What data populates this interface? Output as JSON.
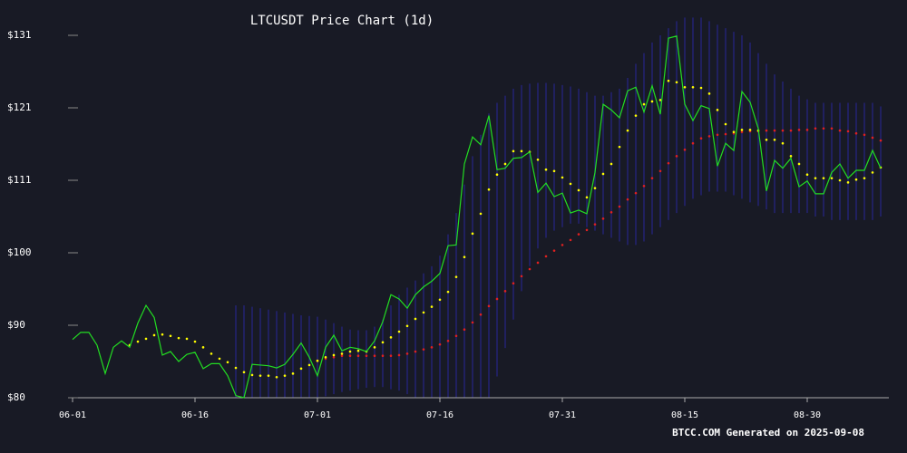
{
  "chart_data": {
    "type": "line",
    "title": "LTCUSDT Price Chart (1d)",
    "footer": "BTCC.COM Generated on 2025-09-08",
    "x": [
      "06-01",
      "06-02",
      "06-03",
      "06-04",
      "06-05",
      "06-06",
      "06-07",
      "06-08",
      "06-09",
      "06-10",
      "06-11",
      "06-12",
      "06-13",
      "06-14",
      "06-15",
      "06-16",
      "06-17",
      "06-18",
      "06-19",
      "06-20",
      "06-21",
      "06-22",
      "06-23",
      "06-24",
      "06-25",
      "06-26",
      "06-27",
      "06-28",
      "06-29",
      "06-30",
      "07-01",
      "07-02",
      "07-03",
      "07-04",
      "07-05",
      "07-06",
      "07-07",
      "07-08",
      "07-09",
      "07-10",
      "07-11",
      "07-12",
      "07-13",
      "07-14",
      "07-15",
      "07-16",
      "07-17",
      "07-18",
      "07-19",
      "07-20",
      "07-21",
      "07-22",
      "07-23",
      "07-24",
      "07-25",
      "07-26",
      "07-27",
      "07-28",
      "07-29",
      "07-30",
      "07-31",
      "08-01",
      "08-02",
      "08-03",
      "08-04",
      "08-05",
      "08-06",
      "08-07",
      "08-08",
      "08-09",
      "08-10",
      "08-11",
      "08-12",
      "08-13",
      "08-14",
      "08-15",
      "08-16",
      "08-17",
      "08-18",
      "08-19",
      "08-20",
      "08-21",
      "08-22",
      "08-23",
      "08-24",
      "08-25",
      "08-26",
      "08-27",
      "08-28",
      "08-29",
      "08-30",
      "08-31",
      "09-01",
      "09-02",
      "09-03",
      "09-04",
      "09-05",
      "09-06",
      "09-07",
      "09-08"
    ],
    "xticks": [
      "06-01",
      "06-16",
      "07-01",
      "07-16",
      "07-31",
      "08-15",
      "08-30"
    ],
    "ylim": [
      80,
      131
    ],
    "yticks": [
      {
        "value": 80,
        "label": "$80"
      },
      {
        "value": 90.2,
        "label": "$90"
      },
      {
        "value": 100.4,
        "label": "$100"
      },
      {
        "value": 110.6,
        "label": "$111"
      },
      {
        "value": 120.8,
        "label": "$121"
      },
      {
        "value": 131,
        "label": "$131"
      }
    ],
    "bands": {
      "color": "#22226e",
      "upper": [
        null,
        null,
        null,
        null,
        null,
        null,
        null,
        null,
        null,
        null,
        null,
        null,
        null,
        null,
        null,
        null,
        null,
        null,
        null,
        null,
        93.0,
        93.0,
        92.8,
        92.6,
        92.4,
        92.2,
        92.0,
        91.8,
        91.6,
        91.5,
        91.4,
        91.0,
        90.5,
        90.0,
        89.6,
        89.5,
        89.5,
        90.0,
        91.0,
        93.0,
        94.5,
        95.5,
        96.5,
        97.5,
        98.5,
        100.0,
        103.0,
        106.0,
        110.0,
        114.0,
        117.0,
        120.0,
        121.5,
        122.5,
        123.5,
        124.0,
        124.2,
        124.3,
        124.3,
        124.2,
        124.0,
        123.8,
        123.5,
        123.0,
        122.5,
        122.5,
        123.0,
        123.5,
        125.0,
        127.0,
        128.5,
        130.0,
        131.0,
        132.0,
        133.0,
        133.5,
        133.5,
        133.5,
        133.0,
        132.5,
        132.0,
        131.5,
        131.0,
        130.0,
        128.5,
        127.0,
        125.5,
        124.5,
        123.5,
        122.5,
        122.0,
        121.5,
        121.5,
        121.5,
        121.5,
        121.5,
        121.5,
        121.5,
        121.5,
        121.0
      ],
      "lower": [
        null,
        null,
        null,
        null,
        null,
        null,
        null,
        null,
        null,
        null,
        null,
        null,
        null,
        null,
        null,
        null,
        null,
        null,
        null,
        null,
        79.5,
        79.0,
        78.8,
        78.8,
        79.0,
        79.0,
        79.0,
        79.2,
        79.5,
        79.8,
        80.0,
        80.2,
        80.5,
        80.8,
        81.0,
        81.2,
        81.4,
        81.5,
        81.5,
        81.2,
        81.0,
        80.5,
        80.0,
        79.5,
        79.0,
        78.5,
        78.0,
        77.5,
        77.0,
        77.0,
        78.0,
        80.0,
        83.0,
        87.0,
        91.0,
        95.0,
        98.5,
        101.0,
        102.5,
        103.5,
        104.0,
        104.5,
        104.5,
        104.0,
        103.5,
        103.0,
        102.5,
        102.0,
        101.5,
        101.5,
        102.0,
        103.0,
        104.0,
        105.0,
        106.0,
        107.0,
        108.0,
        108.5,
        109.0,
        109.0,
        109.0,
        108.5,
        108.0,
        107.5,
        107.0,
        106.5,
        106.0,
        106.0,
        106.0,
        106.0,
        106.0,
        105.5,
        105.5,
        105.0,
        105.0,
        105.0,
        105.0,
        105.0,
        105.0,
        105.5
      ]
    },
    "series": [
      {
        "style": "dots",
        "color": "#e02020",
        "values": [
          null,
          null,
          null,
          null,
          null,
          null,
          null,
          null,
          null,
          null,
          null,
          null,
          null,
          null,
          null,
          null,
          null,
          null,
          null,
          null,
          null,
          null,
          null,
          null,
          null,
          null,
          null,
          null,
          null,
          null,
          85.2,
          85.5,
          85.7,
          85.9,
          85.9,
          85.9,
          85.9,
          85.9,
          85.9,
          85.9,
          86.0,
          86.2,
          86.5,
          86.8,
          87.1,
          87.5,
          88.0,
          88.7,
          89.6,
          90.6,
          91.7,
          92.9,
          93.9,
          95.0,
          96.1,
          97.1,
          98.1,
          99.0,
          99.9,
          100.7,
          101.5,
          102.2,
          103.0,
          103.6,
          104.4,
          105.2,
          106.1,
          106.9,
          107.9,
          108.8,
          109.8,
          110.9,
          111.9,
          113.0,
          114.0,
          114.9,
          115.8,
          116.5,
          116.8,
          117.0,
          117.1,
          117.2,
          117.4,
          117.5,
          117.5,
          117.6,
          117.6,
          117.6,
          117.6,
          117.7,
          117.7,
          117.9,
          117.9,
          117.9,
          117.6,
          117.5,
          117.2,
          117.0,
          116.6,
          116.2
        ]
      },
      {
        "style": "dots",
        "color": "#ffff00",
        "values": [
          null,
          null,
          null,
          null,
          null,
          null,
          null,
          87.4,
          87.9,
          88.3,
          88.8,
          88.9,
          88.7,
          88.4,
          88.3,
          87.9,
          87.1,
          86.2,
          85.5,
          85.0,
          84.2,
          83.6,
          83.2,
          83.1,
          83.1,
          82.9,
          83.1,
          83.4,
          84.1,
          84.6,
          85.2,
          85.7,
          86.0,
          86.2,
          86.5,
          86.6,
          86.5,
          87.1,
          87.8,
          88.5,
          89.3,
          90.1,
          91.1,
          92.0,
          92.8,
          93.8,
          94.9,
          97.0,
          99.8,
          103.1,
          105.9,
          109.3,
          111.4,
          112.9,
          114.7,
          114.7,
          114.6,
          113.5,
          112.1,
          111.9,
          111.0,
          110.1,
          109.2,
          108.2,
          109.5,
          111.5,
          112.9,
          115.3,
          117.6,
          119.7,
          121.3,
          121.7,
          121.9,
          124.6,
          124.4,
          123.7,
          123.7,
          123.6,
          122.8,
          120.5,
          118.5,
          117.4,
          117.7,
          117.7,
          117.6,
          116.3,
          116.3,
          115.8,
          114.0,
          112.9,
          111.4,
          110.9,
          110.9,
          110.9,
          110.6,
          110.3,
          110.7,
          110.9,
          111.7,
          112.4
        ]
      },
      {
        "style": "line",
        "color": "#22dd22",
        "values": [
          88.2,
          89.2,
          89.2,
          87.4,
          83.4,
          87.1,
          88.0,
          87.1,
          90.5,
          93.0,
          91.3,
          86.0,
          86.5,
          85.1,
          86.1,
          86.4,
          84.1,
          84.8,
          84.8,
          83.1,
          80.3,
          80.0,
          84.7,
          84.6,
          84.5,
          84.2,
          84.7,
          86.1,
          87.7,
          85.7,
          83.1,
          87.1,
          88.8,
          86.6,
          87.1,
          86.9,
          86.5,
          88.0,
          90.7,
          94.5,
          93.9,
          92.6,
          94.5,
          95.6,
          96.4,
          97.5,
          101.4,
          101.5,
          112.9,
          116.7,
          115.6,
          119.7,
          112.1,
          112.3,
          113.7,
          113.8,
          114.6,
          108.9,
          110.2,
          108.3,
          108.8,
          106.0,
          106.4,
          105.9,
          111.7,
          121.3,
          120.5,
          119.4,
          123.2,
          123.7,
          120.2,
          123.9,
          119.9,
          130.6,
          130.9,
          121.3,
          119.0,
          121.1,
          120.7,
          112.6,
          115.8,
          114.8,
          123.1,
          121.6,
          117.9,
          109.1,
          113.4,
          112.3,
          113.7,
          109.7,
          110.5,
          108.7,
          108.7,
          111.7,
          112.9,
          110.9,
          112.0,
          112.0,
          114.8,
          112.3
        ]
      }
    ]
  }
}
